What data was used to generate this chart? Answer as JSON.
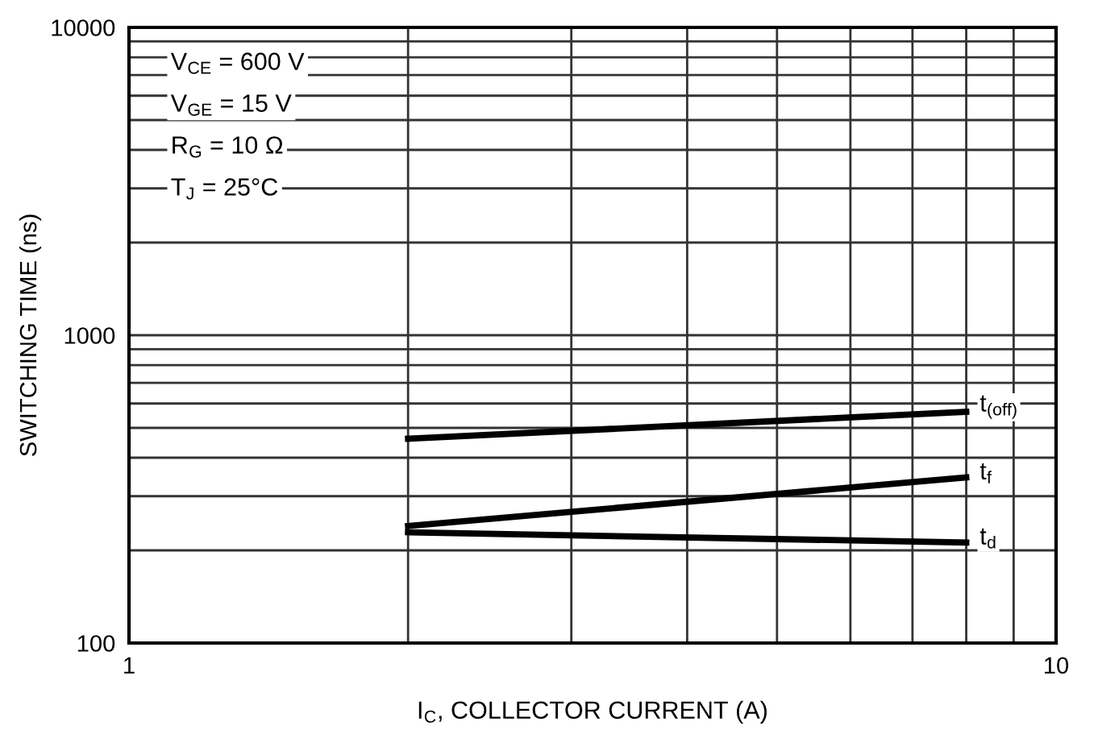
{
  "chart_data": {
    "type": "line",
    "xlabel": "I$_{C}$, COLLECTOR CURRENT (A)",
    "ylabel": "SWITCHING TIME (ns)",
    "log": "xy",
    "grid": true,
    "legend": false,
    "marker": "none",
    "line_style": "solid",
    "xlim": [
      1,
      10
    ],
    "x": [
      2,
      8
    ],
    "ylim": [
      100,
      10000
    ],
    "xticks": [
      1,
      {
        "value": 2,
        "label": null
      },
      {
        "value": 3,
        "label": null
      },
      {
        "value": 4,
        "label": null
      },
      {
        "value": 5,
        "label": null
      },
      {
        "value": 6,
        "label": null
      },
      {
        "value": 7,
        "label": null
      },
      {
        "value": 8,
        "label": null
      },
      {
        "value": 9,
        "label": null
      },
      10
    ],
    "yticks": [
      100,
      {
        "value": 200,
        "label": null
      },
      {
        "value": 300,
        "label": null
      },
      {
        "value": 400,
        "label": null
      },
      {
        "value": 500,
        "label": null
      },
      {
        "value": 600,
        "label": null
      },
      {
        "value": 700,
        "label": null
      },
      {
        "value": 800,
        "label": null
      },
      {
        "value": 900,
        "label": null
      },
      1000,
      {
        "value": 2000,
        "label": null
      },
      {
        "value": 3000,
        "label": null
      },
      {
        "value": 4000,
        "label": null
      },
      {
        "value": 5000,
        "label": null
      },
      {
        "value": 6000,
        "label": null
      },
      {
        "value": 7000,
        "label": null
      },
      {
        "value": 8000,
        "label": null
      },
      {
        "value": 9000,
        "label": null
      },
      10000
    ],
    "series": [
      {
        "name": "t$_{(off)}$",
        "color": "#000000",
        "values": [
          461,
          564
        ]
      },
      {
        "name": "t$_{f}$",
        "color": "#000000",
        "values": [
          240,
          345
        ]
      },
      {
        "name": "t$_{d}$",
        "color": "#000000",
        "values": [
          229,
          212
        ]
      }
    ],
    "annotations": [
      "V$_{CE}$ = 600 V",
      "V$_{GE}$ = 15 V",
      "R$_{G}$ = 10 Ω",
      "T$_{J}$ = 25°C"
    ]
  }
}
